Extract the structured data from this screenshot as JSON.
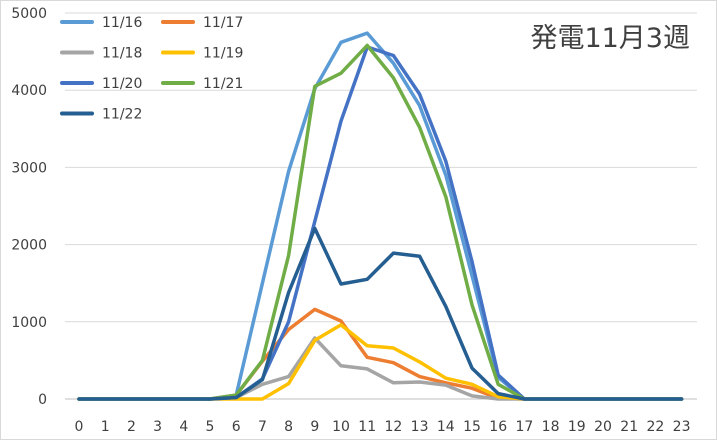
{
  "chart_data": {
    "type": "line",
    "title": "発電11月3週",
    "xlabel": "",
    "ylabel": "",
    "x": [
      0,
      1,
      2,
      3,
      4,
      5,
      6,
      7,
      8,
      9,
      10,
      11,
      12,
      13,
      14,
      15,
      16,
      17,
      18,
      19,
      20,
      21,
      22,
      23
    ],
    "xticks": [
      "0",
      "1",
      "2",
      "3",
      "4",
      "5",
      "6",
      "7",
      "8",
      "9",
      "10",
      "11",
      "12",
      "13",
      "14",
      "15",
      "16",
      "17",
      "18",
      "19",
      "20",
      "21",
      "22",
      "23"
    ],
    "ylim": [
      0,
      5000
    ],
    "yticks": [
      "0",
      "1000",
      "2000",
      "3000",
      "4000",
      "5000"
    ],
    "grid": "horizontal",
    "legend_position": "top-left",
    "series": [
      {
        "name": "11/16",
        "color": "#5B9BD5",
        "values": [
          0,
          0,
          0,
          0,
          0,
          0,
          50,
          1500,
          2950,
          4020,
          4620,
          4740,
          4350,
          3800,
          2900,
          1600,
          280,
          0,
          0,
          0,
          0,
          0,
          0,
          0
        ]
      },
      {
        "name": "11/17",
        "color": "#ED7D31",
        "values": [
          0,
          0,
          0,
          0,
          0,
          0,
          50,
          490,
          900,
          1160,
          1010,
          540,
          470,
          290,
          210,
          140,
          10,
          0,
          0,
          0,
          0,
          0,
          0,
          0
        ]
      },
      {
        "name": "11/18",
        "color": "#A5A5A5",
        "values": [
          0,
          0,
          0,
          0,
          0,
          0,
          20,
          190,
          290,
          790,
          430,
          390,
          210,
          220,
          180,
          40,
          0,
          0,
          0,
          0,
          0,
          0,
          0,
          0
        ]
      },
      {
        "name": "11/19",
        "color": "#FFC000",
        "values": [
          0,
          0,
          0,
          0,
          0,
          0,
          0,
          0,
          200,
          760,
          960,
          690,
          660,
          480,
          270,
          190,
          30,
          0,
          0,
          0,
          0,
          0,
          0,
          0
        ]
      },
      {
        "name": "11/20",
        "color": "#4472C4",
        "values": [
          0,
          0,
          0,
          0,
          0,
          0,
          20,
          260,
          1000,
          2300,
          3600,
          4560,
          4450,
          3950,
          3080,
          1780,
          310,
          0,
          0,
          0,
          0,
          0,
          0,
          0
        ]
      },
      {
        "name": "11/21",
        "color": "#70AD47",
        "values": [
          0,
          0,
          0,
          0,
          0,
          0,
          50,
          500,
          1860,
          4050,
          4220,
          4580,
          4160,
          3520,
          2620,
          1220,
          190,
          0,
          0,
          0,
          0,
          0,
          0,
          0
        ]
      },
      {
        "name": "11/22",
        "color": "#255E91",
        "values": [
          0,
          0,
          0,
          0,
          0,
          0,
          20,
          250,
          1380,
          2210,
          1490,
          1550,
          1890,
          1850,
          1200,
          400,
          70,
          0,
          0,
          0,
          0,
          0,
          0,
          0
        ]
      }
    ]
  }
}
